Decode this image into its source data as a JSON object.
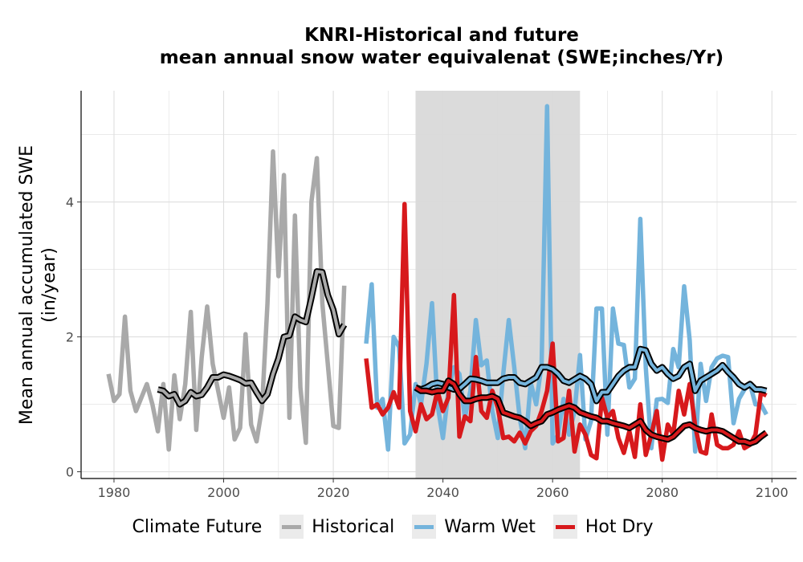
{
  "chart_data": {
    "type": "line",
    "title": [
      "KNRI-Historical and future",
      "mean annual snow water equivalenat (SWE;inches/Yr)"
    ],
    "xlabel": "",
    "ylabel": [
      "Mean annual accumulated SWE",
      "(in/year)"
    ],
    "xlim": [
      1974,
      2104.5
    ],
    "ylim": [
      -0.1,
      5.65
    ],
    "x_ticks": [
      1980,
      2000,
      2020,
      2040,
      2060,
      2080,
      2100
    ],
    "y_ticks": [
      0,
      2,
      4
    ],
    "grid": true,
    "shaded_period": {
      "start": 2035,
      "end": 2065,
      "color": "#d9d9d9"
    },
    "legend": {
      "title": "Climate Future",
      "position": "bottom",
      "entries": [
        {
          "label": "Historical",
          "color": "#a9a9a9"
        },
        {
          "label": "Warm Wet",
          "color": "#74b4dc"
        },
        {
          "label": "Hot Dry",
          "color": "#d7191c"
        }
      ]
    },
    "series": [
      {
        "name": "Historical",
        "color": "#a9a9a9",
        "x_start": 1979,
        "values": [
          1.45,
          1.05,
          1.15,
          2.3,
          1.2,
          0.9,
          1.1,
          1.3,
          1.0,
          0.6,
          1.3,
          0.33,
          1.43,
          0.78,
          1.3,
          2.37,
          0.62,
          1.7,
          2.45,
          1.6,
          1.2,
          0.8,
          1.25,
          0.48,
          0.65,
          2.04,
          0.7,
          0.45,
          0.95,
          2.5,
          4.75,
          2.9,
          4.4,
          0.8,
          3.8,
          1.25,
          0.43,
          4.0,
          4.65,
          2.5,
          1.6,
          0.68,
          0.65,
          2.76
        ]
      },
      {
        "name": "Historical rolling mean",
        "color": "#a9a9a9",
        "smooth": true,
        "x_start": 1988,
        "values": [
          1.22,
          1.2,
          1.12,
          1.15,
          1.0,
          1.05,
          1.18,
          1.12,
          1.14,
          1.25,
          1.4,
          1.4,
          1.44,
          1.42,
          1.39,
          1.36,
          1.31,
          1.32,
          1.18,
          1.05,
          1.15,
          1.45,
          1.68,
          2.0,
          2.02,
          2.3,
          2.25,
          2.22,
          2.58,
          2.97,
          2.96,
          2.62,
          2.4,
          2.04,
          2.18
        ]
      },
      {
        "name": "Warm Wet",
        "color": "#74b4dc",
        "x_start": 2026,
        "values": [
          1.9,
          2.78,
          0.95,
          1.08,
          0.33,
          2.0,
          1.85,
          0.42,
          0.55,
          1.3,
          1.0,
          1.6,
          2.5,
          1.0,
          0.5,
          1.2,
          1.55,
          1.45,
          0.8,
          1.2,
          2.25,
          1.58,
          1.65,
          0.9,
          0.5,
          1.45,
          2.25,
          1.55,
          0.8,
          0.35,
          1.32,
          1.0,
          1.6,
          5.42,
          0.42,
          0.55,
          1.08,
          0.55,
          0.9,
          1.73,
          0.48,
          0.75,
          2.42,
          2.42,
          0.55,
          2.42,
          1.9,
          1.88,
          1.25,
          1.38,
          3.75,
          1.55,
          0.35,
          1.07,
          1.08,
          1.02,
          1.82,
          1.55,
          2.75,
          1.95,
          0.3,
          1.6,
          1.05,
          1.55,
          1.68,
          1.72,
          1.7,
          0.72,
          1.08,
          1.22,
          1.3,
          1.0,
          1.0,
          0.85
        ]
      },
      {
        "name": "Warm Wet rolling mean",
        "color": "#74b4dc",
        "smooth": true,
        "x_start": 2035,
        "values": [
          1.25,
          1.22,
          1.25,
          1.3,
          1.32,
          1.3,
          1.25,
          1.22,
          1.23,
          1.3,
          1.38,
          1.37,
          1.35,
          1.32,
          1.32,
          1.32,
          1.38,
          1.4,
          1.4,
          1.32,
          1.3,
          1.35,
          1.4,
          1.55,
          1.55,
          1.52,
          1.45,
          1.35,
          1.32,
          1.37,
          1.42,
          1.38,
          1.3,
          1.05,
          1.18,
          1.18,
          1.3,
          1.42,
          1.5,
          1.55,
          1.55,
          1.82,
          1.8,
          1.6,
          1.5,
          1.55,
          1.45,
          1.38,
          1.42,
          1.55,
          1.6,
          1.2,
          1.35,
          1.4,
          1.45,
          1.5,
          1.58,
          1.48,
          1.4,
          1.3,
          1.25,
          1.3,
          1.22,
          1.22,
          1.2
        ]
      },
      {
        "name": "Hot Dry",
        "color": "#d7191c",
        "x_start": 2026,
        "values": [
          1.68,
          0.95,
          1.0,
          0.85,
          0.95,
          1.18,
          0.95,
          3.97,
          0.9,
          0.6,
          1.0,
          0.78,
          0.85,
          1.2,
          0.9,
          1.1,
          2.62,
          0.52,
          0.82,
          0.75,
          1.7,
          0.9,
          0.8,
          1.2,
          0.95,
          0.5,
          0.52,
          0.45,
          0.58,
          0.42,
          0.6,
          0.68,
          0.9,
          1.2,
          1.9,
          0.45,
          0.5,
          1.2,
          0.3,
          0.7,
          0.55,
          0.25,
          0.2,
          1.1,
          0.8,
          0.9,
          0.5,
          0.28,
          0.6,
          0.22,
          1.0,
          0.25,
          0.55,
          0.9,
          0.18,
          0.7,
          0.55,
          1.2,
          0.85,
          1.3,
          0.68,
          0.3,
          0.27,
          0.85,
          0.4,
          0.35,
          0.35,
          0.4,
          0.6,
          0.35,
          0.4,
          0.55,
          1.17,
          1.13
        ]
      },
      {
        "name": "Hot Dry rolling mean",
        "color": "#d7191c",
        "smooth": true,
        "x_start": 2035,
        "values": [
          1.25,
          1.2,
          1.2,
          1.18,
          1.2,
          1.2,
          1.35,
          1.3,
          1.15,
          1.05,
          1.05,
          1.08,
          1.1,
          1.1,
          1.12,
          1.08,
          0.88,
          0.85,
          0.82,
          0.8,
          0.75,
          0.68,
          0.72,
          0.75,
          0.85,
          0.88,
          0.92,
          0.95,
          0.98,
          0.95,
          0.88,
          0.85,
          0.82,
          0.8,
          0.75,
          0.75,
          0.72,
          0.7,
          0.68,
          0.65,
          0.7,
          0.75,
          0.62,
          0.55,
          0.52,
          0.5,
          0.48,
          0.52,
          0.6,
          0.68,
          0.7,
          0.65,
          0.62,
          0.6,
          0.62,
          0.62,
          0.6,
          0.55,
          0.5,
          0.45,
          0.45,
          0.42,
          0.45,
          0.52,
          0.58
        ]
      }
    ]
  }
}
